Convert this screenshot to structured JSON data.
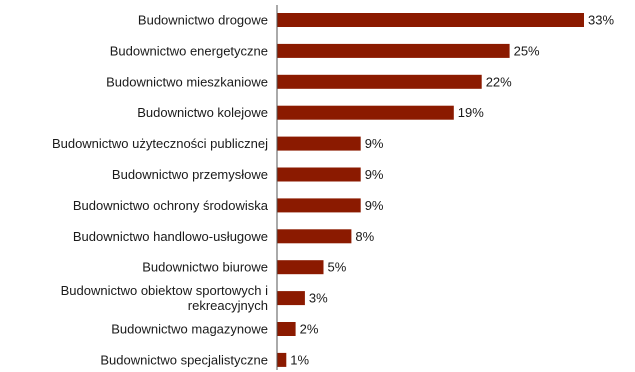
{
  "chart_data": {
    "type": "bar",
    "orientation": "horizontal",
    "categories": [
      "Budownictwo drogowe",
      "Budownictwo energetyczne",
      "Budownictwo mieszkaniowe",
      "Budownictwo kolejowe",
      "Budownictwo użyteczności publicznej",
      "Budownictwo przemysłowe",
      "Budownictwo ochrony środowiska",
      "Budownictwo handlowo-usługowe",
      "Budownictwo biurowe",
      "Budownictwo obiektow sportowych i rekreacyjnych",
      "Budownictwo magazynowe",
      "Budownictwo specjalistyczne"
    ],
    "values": [
      33,
      25,
      22,
      19,
      9,
      9,
      9,
      8,
      5,
      3,
      2,
      1
    ],
    "value_labels": [
      "33%",
      "25%",
      "22%",
      "19%",
      "9%",
      "9%",
      "9%",
      "8%",
      "5%",
      "3%",
      "2%",
      "1%"
    ],
    "bar_color": "#8b1a00",
    "xlim": [
      0,
      33
    ],
    "grid": false,
    "legend": "none"
  }
}
